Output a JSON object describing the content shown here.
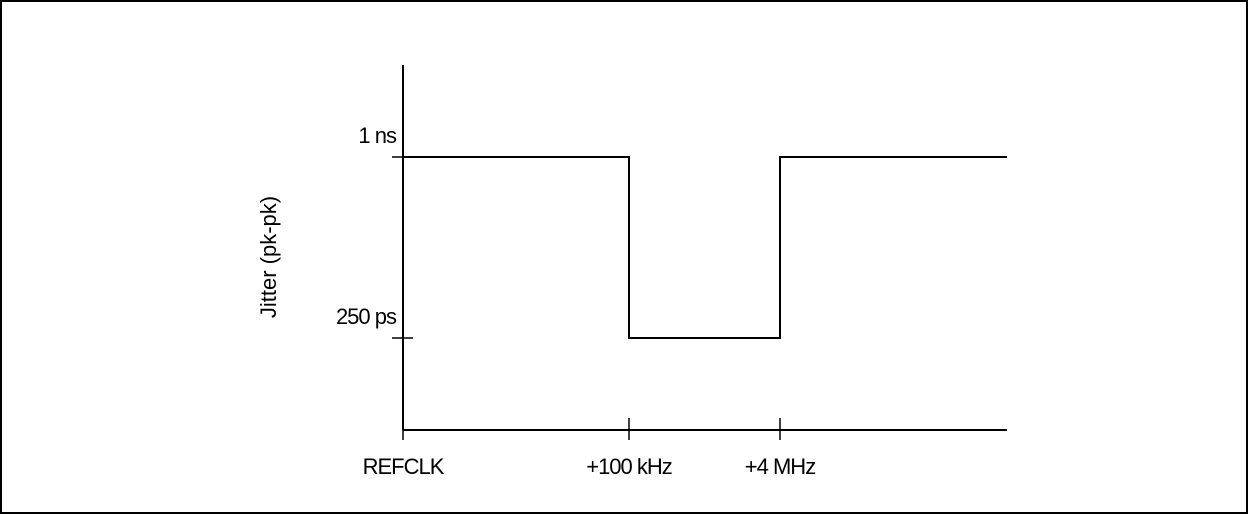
{
  "chart_data": {
    "type": "line",
    "ylabel": "Jitter (pk-pk)",
    "x_ticks": [
      {
        "key": "refclk",
        "label": "REFCLK",
        "value": 0
      },
      {
        "key": "100khz",
        "label": "+100 kHz",
        "value": 100
      },
      {
        "key": "4mhz",
        "label": "+4 MHz",
        "value": 4000
      }
    ],
    "y_ticks": [
      {
        "key": "1ns",
        "label": "1 ns",
        "value": 1000
      },
      {
        "key": "250ps",
        "label": "250 ps",
        "value": 250
      }
    ],
    "series": [
      {
        "points": [
          {
            "x": "REFCLK",
            "y": 1000
          },
          {
            "x": "+100 kHz",
            "y": 1000
          },
          {
            "x": "+100 kHz",
            "y": 250
          },
          {
            "x": "+4 MHz",
            "y": 250
          },
          {
            "x": "+4 MHz",
            "y": 1000
          },
          {
            "x": "end",
            "y": 1000
          }
        ]
      }
    ],
    "grid": false,
    "colors": {
      "line": "#000000",
      "border": "#000000"
    }
  }
}
